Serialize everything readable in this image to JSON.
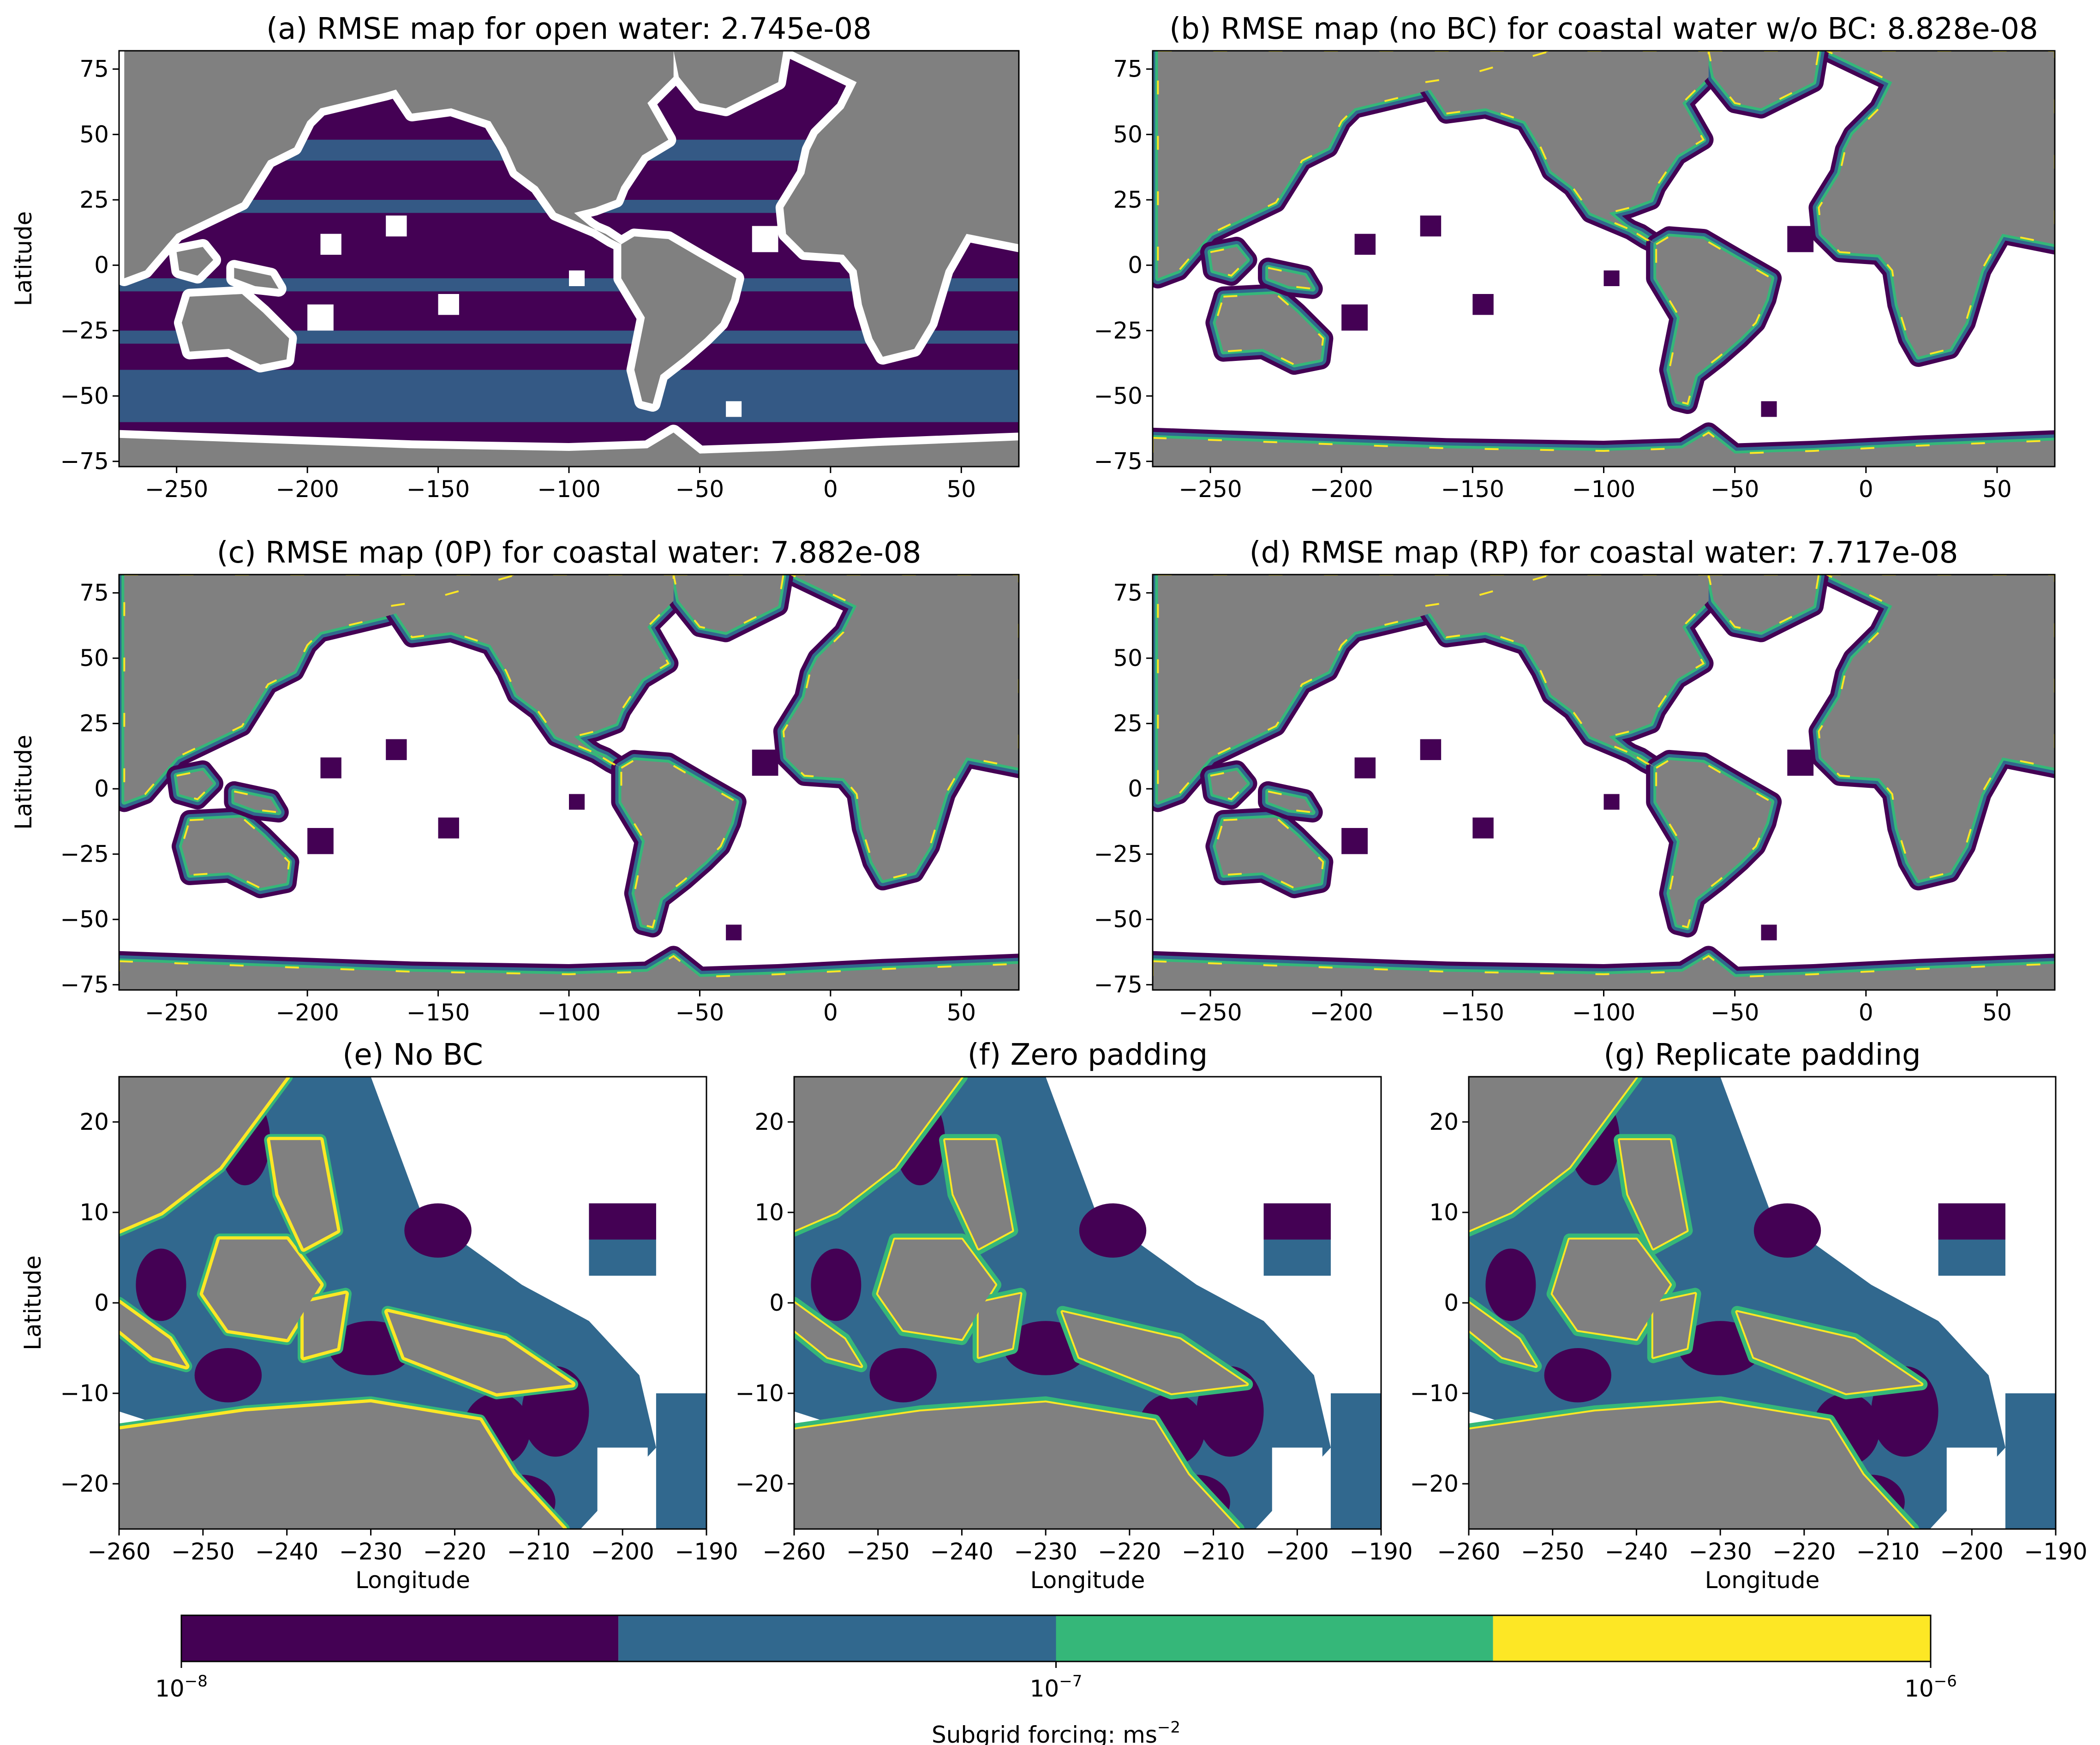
{
  "chart_data": [
    {
      "id": "a",
      "type": "heatmap",
      "title": "(a) RMSE map for open water: 2.745e-08",
      "ylabel": "Latitude",
      "xlabel": "",
      "xlim": [
        -272,
        72
      ],
      "ylim": [
        -77,
        82
      ],
      "xticks": [
        -250,
        -200,
        -150,
        -100,
        -50,
        0,
        50
      ],
      "yticks": [
        -75,
        -50,
        -25,
        0,
        25,
        50,
        75
      ],
      "mode": "open",
      "rmse": 2.745e-08
    },
    {
      "id": "b",
      "type": "heatmap",
      "title": "(b) RMSE map (no BC) for coastal water w/o BC: 8.828e-08",
      "ylabel": "",
      "xlabel": "",
      "xlim": [
        -272,
        72
      ],
      "ylim": [
        -77,
        82
      ],
      "xticks": [
        -250,
        -200,
        -150,
        -100,
        -50,
        0,
        50
      ],
      "yticks": [
        -75,
        -50,
        -25,
        0,
        25,
        50,
        75
      ],
      "mode": "coastal",
      "rmse": 8.828e-08
    },
    {
      "id": "c",
      "type": "heatmap",
      "title": "(c) RMSE map (0P) for coastal water: 7.882e-08",
      "ylabel": "Latitude",
      "xlabel": "",
      "xlim": [
        -272,
        72
      ],
      "ylim": [
        -77,
        82
      ],
      "xticks": [
        -250,
        -200,
        -150,
        -100,
        -50,
        0,
        50
      ],
      "yticks": [
        -75,
        -50,
        -25,
        0,
        25,
        50,
        75
      ],
      "mode": "coastal",
      "rmse": 7.882e-08
    },
    {
      "id": "d",
      "type": "heatmap",
      "title": "(d) RMSE map (RP) for coastal water: 7.717e-08",
      "ylabel": "",
      "xlabel": "",
      "xlim": [
        -272,
        72
      ],
      "ylim": [
        -77,
        82
      ],
      "xticks": [
        -250,
        -200,
        -150,
        -100,
        -50,
        0,
        50
      ],
      "yticks": [
        -75,
        -50,
        -25,
        0,
        25,
        50,
        75
      ],
      "mode": "coastal",
      "rmse": 7.717e-08
    },
    {
      "id": "e",
      "type": "heatmap",
      "title": "(e) No BC",
      "ylabel": "Latitude",
      "xlabel": "Longitude",
      "xlim": [
        -260,
        -190
      ],
      "ylim": [
        -25,
        25
      ],
      "xticks": [
        -260,
        -250,
        -240,
        -230,
        -220,
        -210,
        -200,
        -190
      ],
      "yticks": [
        -20,
        -10,
        0,
        10,
        20
      ],
      "mode": "zoom"
    },
    {
      "id": "f",
      "type": "heatmap",
      "title": "(f) Zero padding",
      "ylabel": "",
      "xlabel": "Longitude",
      "xlim": [
        -260,
        -190
      ],
      "ylim": [
        -25,
        25
      ],
      "xticks": [
        -260,
        -250,
        -240,
        -230,
        -220,
        -210,
        -200,
        -190
      ],
      "yticks": [
        -20,
        -10,
        0,
        10,
        20
      ],
      "mode": "zoom"
    },
    {
      "id": "g",
      "type": "heatmap",
      "title": "(g) Replicate padding",
      "ylabel": "",
      "xlabel": "Longitude",
      "xlim": [
        -260,
        -190
      ],
      "ylim": [
        -25,
        25
      ],
      "xticks": [
        -260,
        -250,
        -240,
        -230,
        -220,
        -210,
        -200,
        -190
      ],
      "yticks": [
        -20,
        -10,
        0,
        10,
        20
      ],
      "mode": "zoom"
    }
  ],
  "colorbar": {
    "label": "Subgrid forcing: ms",
    "label_exponent": "−2",
    "scale": "log",
    "range": [
      1e-08,
      1e-06
    ],
    "ticks": [
      {
        "base": "10",
        "exp": "−8",
        "value": 1e-08
      },
      {
        "base": "10",
        "exp": "−7",
        "value": 1e-07
      },
      {
        "base": "10",
        "exp": "−6",
        "value": 1e-06
      }
    ],
    "bins": [
      {
        "from": 1e-08,
        "to": 3.16e-08,
        "color": "#440154"
      },
      {
        "from": 3.16e-08,
        "to": 1e-07,
        "color": "#31688e"
      },
      {
        "from": 1e-07,
        "to": 3.16e-07,
        "color": "#35b779"
      },
      {
        "from": 3.16e-07,
        "to": 1e-06,
        "color": "#fde725"
      }
    ]
  },
  "colors": {
    "land": "#808080",
    "masked": "#ffffff",
    "c1": "#440154",
    "c2": "#31688e",
    "c3": "#35b779",
    "c4": "#fde725"
  }
}
